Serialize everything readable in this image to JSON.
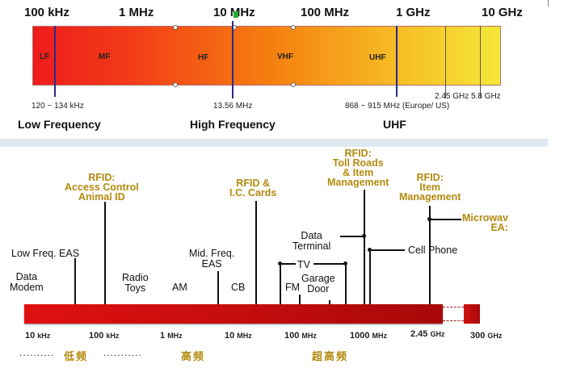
{
  "top": {
    "ticks": [
      "100 kHz",
      "1 MHz",
      "10 MHz",
      "100 MHz",
      "1 GHz",
      "10 GHz"
    ],
    "bands": [
      "LF",
      "MF",
      "HF",
      "VHF",
      "UHF"
    ],
    "markers": [
      "120 ~ 134 kHz",
      "13.56 MHz",
      "868 ~ 915 MHz (Europe/ US)",
      "2.45 GHz",
      "5.8 GHz"
    ],
    "sections": [
      "Low Frequency",
      "High Frequency",
      "UHF"
    ],
    "colors": {
      "left": "#ee1c1c",
      "mid": "#f57d10",
      "right": "#f5e838",
      "marker": "#2a2a8a"
    }
  },
  "bottom": {
    "apps": {
      "data_modem": "Data\nModem",
      "low_freq_eas": "Low Freq. EAS",
      "rfid_access": "RFID:\nAccess Control\nAnimal ID",
      "radio_toys": "Radio\nToys",
      "am": "AM",
      "mid_freq_eas": "Mid. Freq.\nEAS",
      "cb": "CB",
      "rfid_cards": "RFID &\nI.C. Cards",
      "fm": "FM",
      "tv": "TV",
      "garage_door": "Garage\nDoor",
      "data_terminal": "Data\nTerminal",
      "rfid_toll": "RFID:\nToll Roads\n& Item\nManagement",
      "cell_phone": "Cell Phone",
      "rfid_item": "RFID:\nItem\nManagement",
      "microwave": "Microwav\nEA:"
    },
    "axis": [
      {
        "num": "10 ",
        "unit": "kHz"
      },
      {
        "num": "100 ",
        "unit": "kHz"
      },
      {
        "num": "1 ",
        "unit": "MHz"
      },
      {
        "num": "10 ",
        "unit": "MHz"
      },
      {
        "num": "100 ",
        "unit": "MHz"
      },
      {
        "num": "1000 ",
        "unit": "MHz"
      },
      {
        "num": "2.45 ",
        "unit": "GHz"
      },
      {
        "num": "300 ",
        "unit": "GHz"
      }
    ],
    "cn_labels": [
      "低频",
      "高频",
      "超高频"
    ],
    "dots": [
      "..........",
      "..........."
    ],
    "colors": {
      "bar_left": "#e01010",
      "bar_right": "#a80808",
      "rfid_text": "#b38a0e"
    }
  }
}
